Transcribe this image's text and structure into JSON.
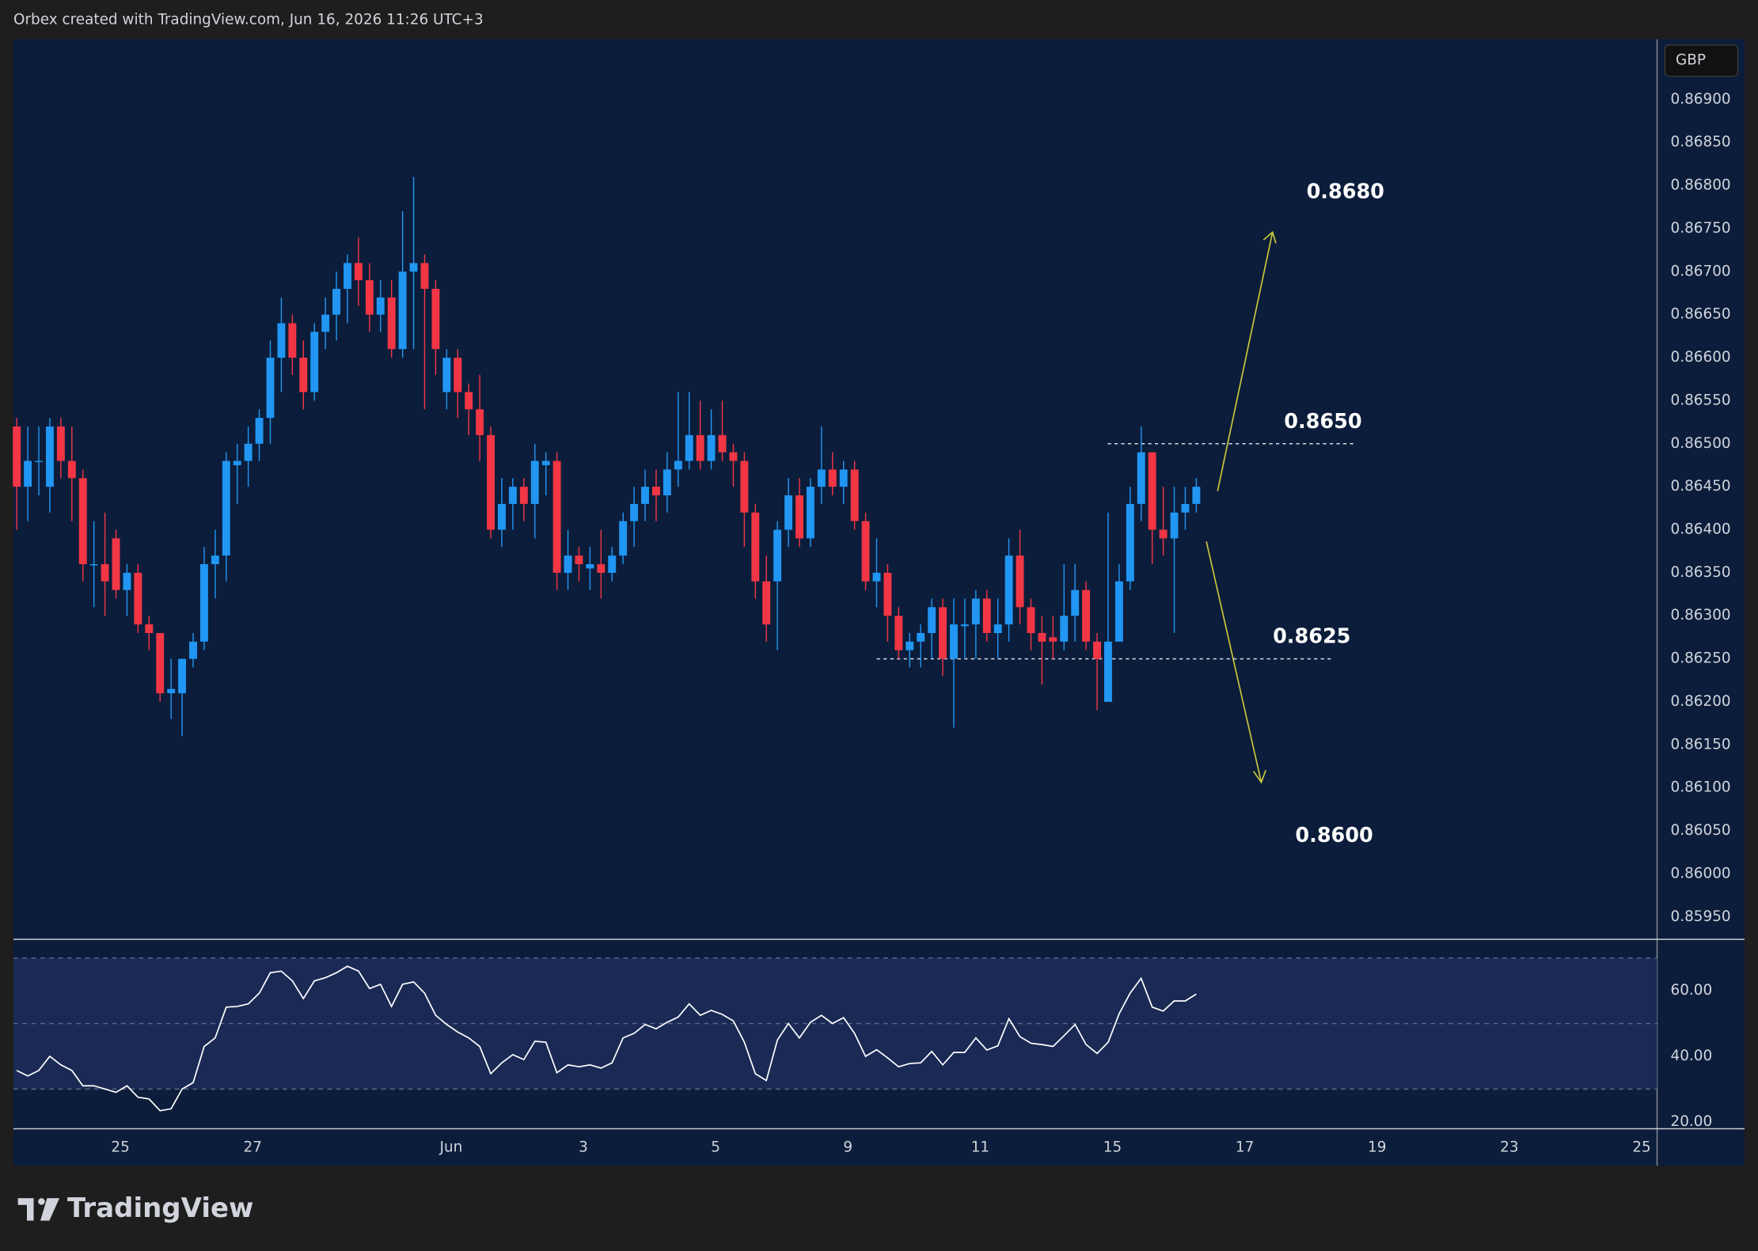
{
  "chart_data": {
    "type": "candlestick",
    "title": "Orbex created with TradingView.com, Jun 16, 2026 11:26 UTC+3",
    "currency_label": "GBP",
    "watermark": "TradingView",
    "up_color": "#2196f3",
    "down_color": "#f23645",
    "xlim": [
      -0.3,
      148.8
    ],
    "xticks": [
      {
        "value": 9.4,
        "label": "25"
      },
      {
        "value": 21.4,
        "label": "27"
      },
      {
        "value": 39.4,
        "label": "Jun"
      },
      {
        "value": 51.4,
        "label": "3"
      },
      {
        "value": 63.4,
        "label": "5"
      },
      {
        "value": 75.4,
        "label": "9"
      },
      {
        "value": 87.4,
        "label": "11"
      },
      {
        "value": 99.4,
        "label": "15"
      },
      {
        "value": 111.4,
        "label": "17"
      },
      {
        "value": 123.4,
        "label": "19"
      },
      {
        "value": 135.4,
        "label": "23"
      },
      {
        "value": 147.4,
        "label": "25"
      }
    ],
    "ylim": [
      0.85924,
      0.8697
    ],
    "yticks": [
      {
        "value": 0.8595,
        "label": "0.85950"
      },
      {
        "value": 0.86,
        "label": "0.86000"
      },
      {
        "value": 0.8605,
        "label": "0.86050"
      },
      {
        "value": 0.861,
        "label": "0.86100"
      },
      {
        "value": 0.8615,
        "label": "0.86150"
      },
      {
        "value": 0.862,
        "label": "0.86200"
      },
      {
        "value": 0.8625,
        "label": "0.86250"
      },
      {
        "value": 0.863,
        "label": "0.86300"
      },
      {
        "value": 0.8635,
        "label": "0.86350"
      },
      {
        "value": 0.864,
        "label": "0.86400"
      },
      {
        "value": 0.8645,
        "label": "0.86450"
      },
      {
        "value": 0.865,
        "label": "0.86500"
      },
      {
        "value": 0.8655,
        "label": "0.86550"
      },
      {
        "value": 0.866,
        "label": "0.86600"
      },
      {
        "value": 0.8665,
        "label": "0.86650"
      },
      {
        "value": 0.867,
        "label": "0.86700"
      },
      {
        "value": 0.8675,
        "label": "0.86750"
      },
      {
        "value": 0.868,
        "label": "0.86800"
      },
      {
        "value": 0.8685,
        "label": "0.86850"
      },
      {
        "value": 0.869,
        "label": "0.86900"
      }
    ],
    "ohlc": [
      [
        0.8652,
        0.8653,
        0.864,
        0.8645
      ],
      [
        0.8645,
        0.8652,
        0.8641,
        0.8648
      ],
      [
        0.8648,
        0.8652,
        0.8644,
        0.8648
      ],
      [
        0.8645,
        0.8653,
        0.8642,
        0.8652
      ],
      [
        0.8652,
        0.8653,
        0.8646,
        0.8648
      ],
      [
        0.8648,
        0.8652,
        0.8641,
        0.8646
      ],
      [
        0.8646,
        0.8647,
        0.8634,
        0.8636
      ],
      [
        0.8636,
        0.8641,
        0.8631,
        0.8636
      ],
      [
        0.8636,
        0.8642,
        0.863,
        0.8634
      ],
      [
        0.8639,
        0.864,
        0.8632,
        0.8633
      ],
      [
        0.8633,
        0.8636,
        0.863,
        0.8635
      ],
      [
        0.8635,
        0.8636,
        0.8628,
        0.8629
      ],
      [
        0.8629,
        0.863,
        0.8626,
        0.8628
      ],
      [
        0.8628,
        0.8628,
        0.862,
        0.8621
      ],
      [
        0.8621,
        0.8625,
        0.8618,
        0.86215
      ],
      [
        0.8621,
        0.8625,
        0.8616,
        0.8625
      ],
      [
        0.8625,
        0.8628,
        0.8624,
        0.8627
      ],
      [
        0.8627,
        0.8638,
        0.8626,
        0.8636
      ],
      [
        0.8636,
        0.864,
        0.8632,
        0.8637
      ],
      [
        0.8637,
        0.8649,
        0.8634,
        0.8648
      ],
      [
        0.86475,
        0.865,
        0.8643,
        0.8648
      ],
      [
        0.8648,
        0.8652,
        0.8645,
        0.865
      ],
      [
        0.865,
        0.8654,
        0.8648,
        0.8653
      ],
      [
        0.8653,
        0.8662,
        0.865,
        0.866
      ],
      [
        0.866,
        0.8667,
        0.8656,
        0.8664
      ],
      [
        0.8664,
        0.8665,
        0.8658,
        0.866
      ],
      [
        0.866,
        0.8662,
        0.8654,
        0.8656
      ],
      [
        0.8656,
        0.8664,
        0.8655,
        0.8663
      ],
      [
        0.8663,
        0.8667,
        0.8661,
        0.8665
      ],
      [
        0.8665,
        0.867,
        0.8662,
        0.8668
      ],
      [
        0.8668,
        0.8672,
        0.8664,
        0.8671
      ],
      [
        0.8671,
        0.8674,
        0.8666,
        0.8669
      ],
      [
        0.8669,
        0.8671,
        0.8663,
        0.8665
      ],
      [
        0.8665,
        0.8669,
        0.8663,
        0.8667
      ],
      [
        0.8667,
        0.8669,
        0.866,
        0.8661
      ],
      [
        0.8661,
        0.8677,
        0.866,
        0.867
      ],
      [
        0.867,
        0.8681,
        0.8661,
        0.8671
      ],
      [
        0.8671,
        0.8672,
        0.8654,
        0.8668
      ],
      [
        0.8668,
        0.8669,
        0.8658,
        0.8661
      ],
      [
        0.8656,
        0.8661,
        0.8654,
        0.866
      ],
      [
        0.866,
        0.8661,
        0.8653,
        0.8656
      ],
      [
        0.8656,
        0.8657,
        0.8651,
        0.8654
      ],
      [
        0.8654,
        0.8658,
        0.8648,
        0.8651
      ],
      [
        0.8651,
        0.8652,
        0.8639,
        0.864
      ],
      [
        0.864,
        0.8646,
        0.8638,
        0.8643
      ],
      [
        0.8643,
        0.8646,
        0.864,
        0.8645
      ],
      [
        0.8645,
        0.8646,
        0.8641,
        0.8643
      ],
      [
        0.8643,
        0.865,
        0.8639,
        0.8648
      ],
      [
        0.86475,
        0.8649,
        0.8644,
        0.8648
      ],
      [
        0.8648,
        0.8649,
        0.8633,
        0.8635
      ],
      [
        0.8635,
        0.864,
        0.8633,
        0.8637
      ],
      [
        0.8637,
        0.8638,
        0.8634,
        0.8636
      ],
      [
        0.86355,
        0.8638,
        0.8633,
        0.8636
      ],
      [
        0.8636,
        0.864,
        0.8632,
        0.8635
      ],
      [
        0.8635,
        0.8638,
        0.8634,
        0.8637
      ],
      [
        0.8637,
        0.8642,
        0.8636,
        0.8641
      ],
      [
        0.8641,
        0.8645,
        0.8638,
        0.8643
      ],
      [
        0.8643,
        0.8647,
        0.8641,
        0.8645
      ],
      [
        0.8645,
        0.8647,
        0.8641,
        0.8644
      ],
      [
        0.8644,
        0.8649,
        0.8642,
        0.8647
      ],
      [
        0.8647,
        0.8656,
        0.8645,
        0.8648
      ],
      [
        0.8648,
        0.8656,
        0.8647,
        0.8651
      ],
      [
        0.8651,
        0.8655,
        0.8647,
        0.8648
      ],
      [
        0.8648,
        0.8654,
        0.8647,
        0.8651
      ],
      [
        0.8651,
        0.8655,
        0.8648,
        0.8649
      ],
      [
        0.8649,
        0.865,
        0.8645,
        0.8648
      ],
      [
        0.8648,
        0.8649,
        0.8638,
        0.8642
      ],
      [
        0.8642,
        0.8643,
        0.8632,
        0.8634
      ],
      [
        0.8634,
        0.8637,
        0.8627,
        0.8629
      ],
      [
        0.8634,
        0.8641,
        0.8626,
        0.864
      ],
      [
        0.864,
        0.8646,
        0.8638,
        0.8644
      ],
      [
        0.8644,
        0.8646,
        0.8638,
        0.8639
      ],
      [
        0.8639,
        0.8646,
        0.8638,
        0.8645
      ],
      [
        0.8645,
        0.8652,
        0.8643,
        0.8647
      ],
      [
        0.8647,
        0.8649,
        0.8644,
        0.8645
      ],
      [
        0.8645,
        0.8648,
        0.8643,
        0.8647
      ],
      [
        0.8647,
        0.8648,
        0.864,
        0.8641
      ],
      [
        0.8641,
        0.8642,
        0.8633,
        0.8634
      ],
      [
        0.8634,
        0.8639,
        0.8631,
        0.8635
      ],
      [
        0.8635,
        0.8636,
        0.8627,
        0.863
      ],
      [
        0.863,
        0.8631,
        0.8625,
        0.8626
      ],
      [
        0.8626,
        0.8628,
        0.8624,
        0.8627
      ],
      [
        0.8627,
        0.8629,
        0.8624,
        0.8628
      ],
      [
        0.8628,
        0.8632,
        0.8625,
        0.8631
      ],
      [
        0.8631,
        0.8632,
        0.8623,
        0.8625
      ],
      [
        0.8625,
        0.8632,
        0.8617,
        0.8629
      ],
      [
        0.86288,
        0.8632,
        0.8625,
        0.8629
      ],
      [
        0.8629,
        0.8633,
        0.8625,
        0.8632
      ],
      [
        0.8632,
        0.8633,
        0.8627,
        0.8628
      ],
      [
        0.8628,
        0.8632,
        0.8625,
        0.8629
      ],
      [
        0.8629,
        0.8639,
        0.8627,
        0.8637
      ],
      [
        0.8637,
        0.864,
        0.8629,
        0.8631
      ],
      [
        0.8631,
        0.8632,
        0.8626,
        0.8628
      ],
      [
        0.8628,
        0.863,
        0.8622,
        0.8627
      ],
      [
        0.86275,
        0.863,
        0.8625,
        0.8627
      ],
      [
        0.8627,
        0.8636,
        0.8626,
        0.863
      ],
      [
        0.863,
        0.8636,
        0.8627,
        0.8633
      ],
      [
        0.8633,
        0.8634,
        0.8626,
        0.8627
      ],
      [
        0.8627,
        0.8628,
        0.8619,
        0.8625
      ],
      [
        0.862,
        0.8642,
        0.862,
        0.8627
      ],
      [
        0.8627,
        0.8636,
        0.8627,
        0.8634
      ],
      [
        0.8634,
        0.8645,
        0.8633,
        0.8643
      ],
      [
        0.8643,
        0.8652,
        0.8641,
        0.8649
      ],
      [
        0.8649,
        0.8649,
        0.8636,
        0.864
      ],
      [
        0.864,
        0.8645,
        0.8637,
        0.8639
      ],
      [
        0.8639,
        0.8645,
        0.8628,
        0.8642
      ],
      [
        0.8642,
        0.8645,
        0.864,
        0.8643
      ],
      [
        0.8643,
        0.8646,
        0.8642,
        0.8645
      ]
    ],
    "levels": [
      {
        "value": 0.865,
        "label": "0.8650"
      },
      {
        "value": 0.8625,
        "label": "0.8625"
      }
    ],
    "targets": [
      "0.8680",
      "0.8600"
    ],
    "rsi": {
      "color": "#ffffff",
      "ylim": [
        17.9,
        75.7
      ],
      "yticks": [
        {
          "value": 60,
          "label": "60.00"
        },
        {
          "value": 40,
          "label": "40.00"
        },
        {
          "value": 20,
          "label": "20.00"
        }
      ],
      "band": [
        30,
        70
      ],
      "mid": 50,
      "values": [
        35.7,
        34,
        35.7,
        40,
        37.4,
        35.7,
        31,
        31,
        30,
        29,
        31,
        27.5,
        27,
        23.4,
        24,
        30,
        32,
        43,
        45.6,
        55,
        55.2,
        56,
        59.3,
        65.5,
        66,
        63,
        57.6,
        63,
        64,
        65.5,
        67.5,
        66,
        60.7,
        62,
        55.2,
        62,
        62.7,
        59.3,
        52.5,
        49.7,
        47.4,
        45.6,
        43,
        34.7,
        38,
        40.5,
        39,
        44.6,
        44.3,
        35,
        37.4,
        36.8,
        37.4,
        36.4,
        38,
        45.6,
        47,
        49.7,
        48.4,
        50.4,
        52,
        56,
        52.5,
        54,
        52.8,
        50.8,
        44.3,
        34.7,
        32.6,
        45,
        50,
        45.6,
        50.4,
        52.5,
        50,
        51.8,
        47,
        40,
        42,
        39.5,
        36.8,
        37.8,
        38,
        41.5,
        37.4,
        41.2,
        41.2,
        45.6,
        41.9,
        43.2,
        51.5,
        46,
        44,
        43.6,
        43,
        46.3,
        49.7,
        43.6,
        40.9,
        44.3,
        53,
        59.3,
        63.8,
        55,
        53.8,
        56.9,
        56.9,
        59
      ]
    }
  }
}
